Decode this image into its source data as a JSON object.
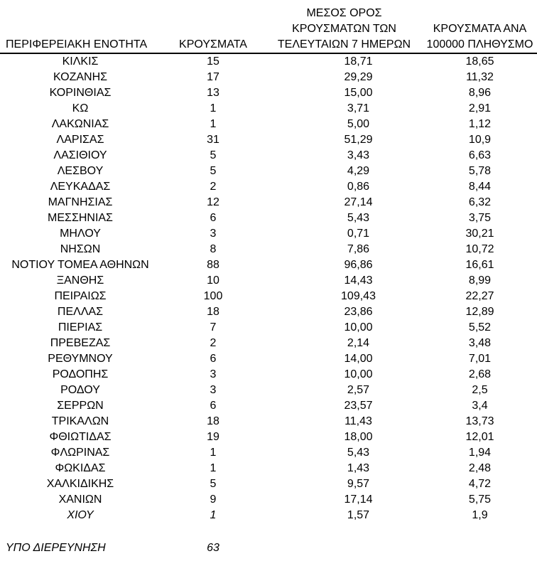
{
  "page": {
    "background": "#ffffff",
    "text_color": "#000000",
    "header_rule_color": "#000000"
  },
  "table": {
    "columns": [
      {
        "id": "region",
        "header_lines": [
          "ΠΕΡΙΦΕΡΕΙΑΚΗ ΕΝΟΤΗΤΑ"
        ]
      },
      {
        "id": "cases",
        "header_lines": [
          "ΚΡΟΥΣΜΑΤΑ"
        ]
      },
      {
        "id": "avg7",
        "header_lines": [
          "ΜΕΣΟΣ ΟΡΟΣ",
          "ΚΡΟΥΣΜΑΤΩΝ ΤΩΝ",
          "ΤΕΛΕΥΤΑΙΩΝ 7 ΗΜΕΡΩΝ"
        ]
      },
      {
        "id": "per100k",
        "header_lines": [
          "ΚΡΟΥΣΜΑΤΑ ΑΝΑ",
          "100000 ΠΛΗΘΥΣΜΟ"
        ]
      }
    ],
    "rows": [
      {
        "region": "ΚΙΛΚΙΣ",
        "cases": "15",
        "avg7": "18,71",
        "per100k": "18,65",
        "italic": false
      },
      {
        "region": "ΚΟΖΑΝΗΣ",
        "cases": "17",
        "avg7": "29,29",
        "per100k": "11,32",
        "italic": false
      },
      {
        "region": "ΚΟΡΙΝΘΙΑΣ",
        "cases": "13",
        "avg7": "15,00",
        "per100k": "8,96",
        "italic": false
      },
      {
        "region": "ΚΩ",
        "cases": "1",
        "avg7": "3,71",
        "per100k": "2,91",
        "italic": false
      },
      {
        "region": "ΛΑΚΩΝΙΑΣ",
        "cases": "1",
        "avg7": "5,00",
        "per100k": "1,12",
        "italic": false
      },
      {
        "region": "ΛΑΡΙΣΑΣ",
        "cases": "31",
        "avg7": "51,29",
        "per100k": "10,9",
        "italic": false
      },
      {
        "region": "ΛΑΣΙΘΙΟΥ",
        "cases": "5",
        "avg7": "3,43",
        "per100k": "6,63",
        "italic": false
      },
      {
        "region": "ΛΕΣΒΟΥ",
        "cases": "5",
        "avg7": "4,29",
        "per100k": "5,78",
        "italic": false
      },
      {
        "region": "ΛΕΥΚΑΔΑΣ",
        "cases": "2",
        "avg7": "0,86",
        "per100k": "8,44",
        "italic": false
      },
      {
        "region": "ΜΑΓΝΗΣΙΑΣ",
        "cases": "12",
        "avg7": "27,14",
        "per100k": "6,32",
        "italic": false
      },
      {
        "region": "ΜΕΣΣΗΝΙΑΣ",
        "cases": "6",
        "avg7": "5,43",
        "per100k": "3,75",
        "italic": false
      },
      {
        "region": "ΜΗΛΟΥ",
        "cases": "3",
        "avg7": "0,71",
        "per100k": "30,21",
        "italic": false
      },
      {
        "region": "ΝΗΣΩΝ",
        "cases": "8",
        "avg7": "7,86",
        "per100k": "10,72",
        "italic": false
      },
      {
        "region": "ΝΟΤΙΟΥ ΤΟΜΕΑ ΑΘΗΝΩΝ",
        "cases": "88",
        "avg7": "96,86",
        "per100k": "16,61",
        "italic": false
      },
      {
        "region": "ΞΑΝΘΗΣ",
        "cases": "10",
        "avg7": "14,43",
        "per100k": "8,99",
        "italic": false
      },
      {
        "region": "ΠΕΙΡΑΙΩΣ",
        "cases": "100",
        "avg7": "109,43",
        "per100k": "22,27",
        "italic": false
      },
      {
        "region": "ΠΕΛΛΑΣ",
        "cases": "18",
        "avg7": "23,86",
        "per100k": "12,89",
        "italic": false
      },
      {
        "region": "ΠΙΕΡΙΑΣ",
        "cases": "7",
        "avg7": "10,00",
        "per100k": "5,52",
        "italic": false
      },
      {
        "region": "ΠΡΕΒΕΖΑΣ",
        "cases": "2",
        "avg7": "2,14",
        "per100k": "3,48",
        "italic": false
      },
      {
        "region": "ΡΕΘΥΜΝΟΥ",
        "cases": "6",
        "avg7": "14,00",
        "per100k": "7,01",
        "italic": false
      },
      {
        "region": "ΡΟΔΟΠΗΣ",
        "cases": "3",
        "avg7": "10,00",
        "per100k": "2,68",
        "italic": false
      },
      {
        "region": "ΡΟΔΟΥ",
        "cases": "3",
        "avg7": "2,57",
        "per100k": "2,5",
        "italic": false
      },
      {
        "region": "ΣΕΡΡΩΝ",
        "cases": "6",
        "avg7": "23,57",
        "per100k": "3,4",
        "italic": false
      },
      {
        "region": "ΤΡΙΚΑΛΩΝ",
        "cases": "18",
        "avg7": "11,43",
        "per100k": "13,73",
        "italic": false
      },
      {
        "region": "ΦΘΙΩΤΙΔΑΣ",
        "cases": "19",
        "avg7": "18,00",
        "per100k": "12,01",
        "italic": false
      },
      {
        "region": "ΦΛΩΡΙΝΑΣ",
        "cases": "1",
        "avg7": "5,43",
        "per100k": "1,94",
        "italic": false
      },
      {
        "region": "ΦΩΚΙΔΑΣ",
        "cases": "1",
        "avg7": "1,43",
        "per100k": "2,48",
        "italic": false
      },
      {
        "region": "ΧΑΛΚΙΔΙΚΗΣ",
        "cases": "5",
        "avg7": "9,57",
        "per100k": "4,72",
        "italic": false
      },
      {
        "region": "ΧΑΝΙΩΝ",
        "cases": "9",
        "avg7": "17,14",
        "per100k": "5,75",
        "italic": false
      },
      {
        "region": "ΧΙΟΥ",
        "cases": "1",
        "avg7": "1,57",
        "per100k": "1,9",
        "italic": true
      }
    ],
    "under_investigation": {
      "label": "ΥΠΟ ΔΙΕΡΕΥΝΗΣΗ",
      "cases": "63"
    }
  },
  "chart_data": {
    "type": "table",
    "columns": [
      "ΠΕΡΙΦΕΡΕΙΑΚΗ ΕΝΟΤΗΤΑ",
      "ΚΡΟΥΣΜΑΤΑ",
      "ΜΕΣΟΣ ΟΡΟΣ ΚΡΟΥΣΜΑΤΩΝ ΤΩΝ ΤΕΛΕΥΤΑΙΩΝ 7 ΗΜΕΡΩΝ",
      "ΚΡΟΥΣΜΑΤΑ ΑΝΑ 100000 ΠΛΗΘΥΣΜΟ"
    ],
    "rows": [
      [
        "ΚΙΛΚΙΣ",
        "15",
        "18,71",
        "18,65"
      ],
      [
        "ΚΟΖΑΝΗΣ",
        "17",
        "29,29",
        "11,32"
      ],
      [
        "ΚΟΡΙΝΘΙΑΣ",
        "13",
        "15,00",
        "8,96"
      ],
      [
        "ΚΩ",
        "1",
        "3,71",
        "2,91"
      ],
      [
        "ΛΑΚΩΝΙΑΣ",
        "1",
        "5,00",
        "1,12"
      ],
      [
        "ΛΑΡΙΣΑΣ",
        "31",
        "51,29",
        "10,9"
      ],
      [
        "ΛΑΣΙΘΙΟΥ",
        "5",
        "3,43",
        "6,63"
      ],
      [
        "ΛΕΣΒΟΥ",
        "5",
        "4,29",
        "5,78"
      ],
      [
        "ΛΕΥΚΑΔΑΣ",
        "2",
        "0,86",
        "8,44"
      ],
      [
        "ΜΑΓΝΗΣΙΑΣ",
        "12",
        "27,14",
        "6,32"
      ],
      [
        "ΜΕΣΣΗΝΙΑΣ",
        "6",
        "5,43",
        "3,75"
      ],
      [
        "ΜΗΛΟΥ",
        "3",
        "0,71",
        "30,21"
      ],
      [
        "ΝΗΣΩΝ",
        "8",
        "7,86",
        "10,72"
      ],
      [
        "ΝΟΤΙΟΥ ΤΟΜΕΑ ΑΘΗΝΩΝ",
        "88",
        "96,86",
        "16,61"
      ],
      [
        "ΞΑΝΘΗΣ",
        "10",
        "14,43",
        "8,99"
      ],
      [
        "ΠΕΙΡΑΙΩΣ",
        "100",
        "109,43",
        "22,27"
      ],
      [
        "ΠΕΛΛΑΣ",
        "18",
        "23,86",
        "12,89"
      ],
      [
        "ΠΙΕΡΙΑΣ",
        "7",
        "10,00",
        "5,52"
      ],
      [
        "ΠΡΕΒΕΖΑΣ",
        "2",
        "2,14",
        "3,48"
      ],
      [
        "ΡΕΘΥΜΝΟΥ",
        "6",
        "14,00",
        "7,01"
      ],
      [
        "ΡΟΔΟΠΗΣ",
        "3",
        "10,00",
        "2,68"
      ],
      [
        "ΡΟΔΟΥ",
        "3",
        "2,57",
        "2,5"
      ],
      [
        "ΣΕΡΡΩΝ",
        "6",
        "23,57",
        "3,4"
      ],
      [
        "ΤΡΙΚΑΛΩΝ",
        "18",
        "11,43",
        "13,73"
      ],
      [
        "ΦΘΙΩΤΙΔΑΣ",
        "19",
        "18,00",
        "12,01"
      ],
      [
        "ΦΛΩΡΙΝΑΣ",
        "1",
        "5,43",
        "1,94"
      ],
      [
        "ΦΩΚΙΔΑΣ",
        "1",
        "1,43",
        "2,48"
      ],
      [
        "ΧΑΛΚΙΔΙΚΗΣ",
        "5",
        "9,57",
        "4,72"
      ],
      [
        "ΧΑΝΙΩΝ",
        "9",
        "17,14",
        "5,75"
      ],
      [
        "ΧΙΟΥ",
        "1",
        "1,57",
        "1,9"
      ],
      [
        "ΥΠΟ ΔΙΕΡΕΥΝΗΣΗ",
        "63",
        "",
        ""
      ]
    ]
  }
}
